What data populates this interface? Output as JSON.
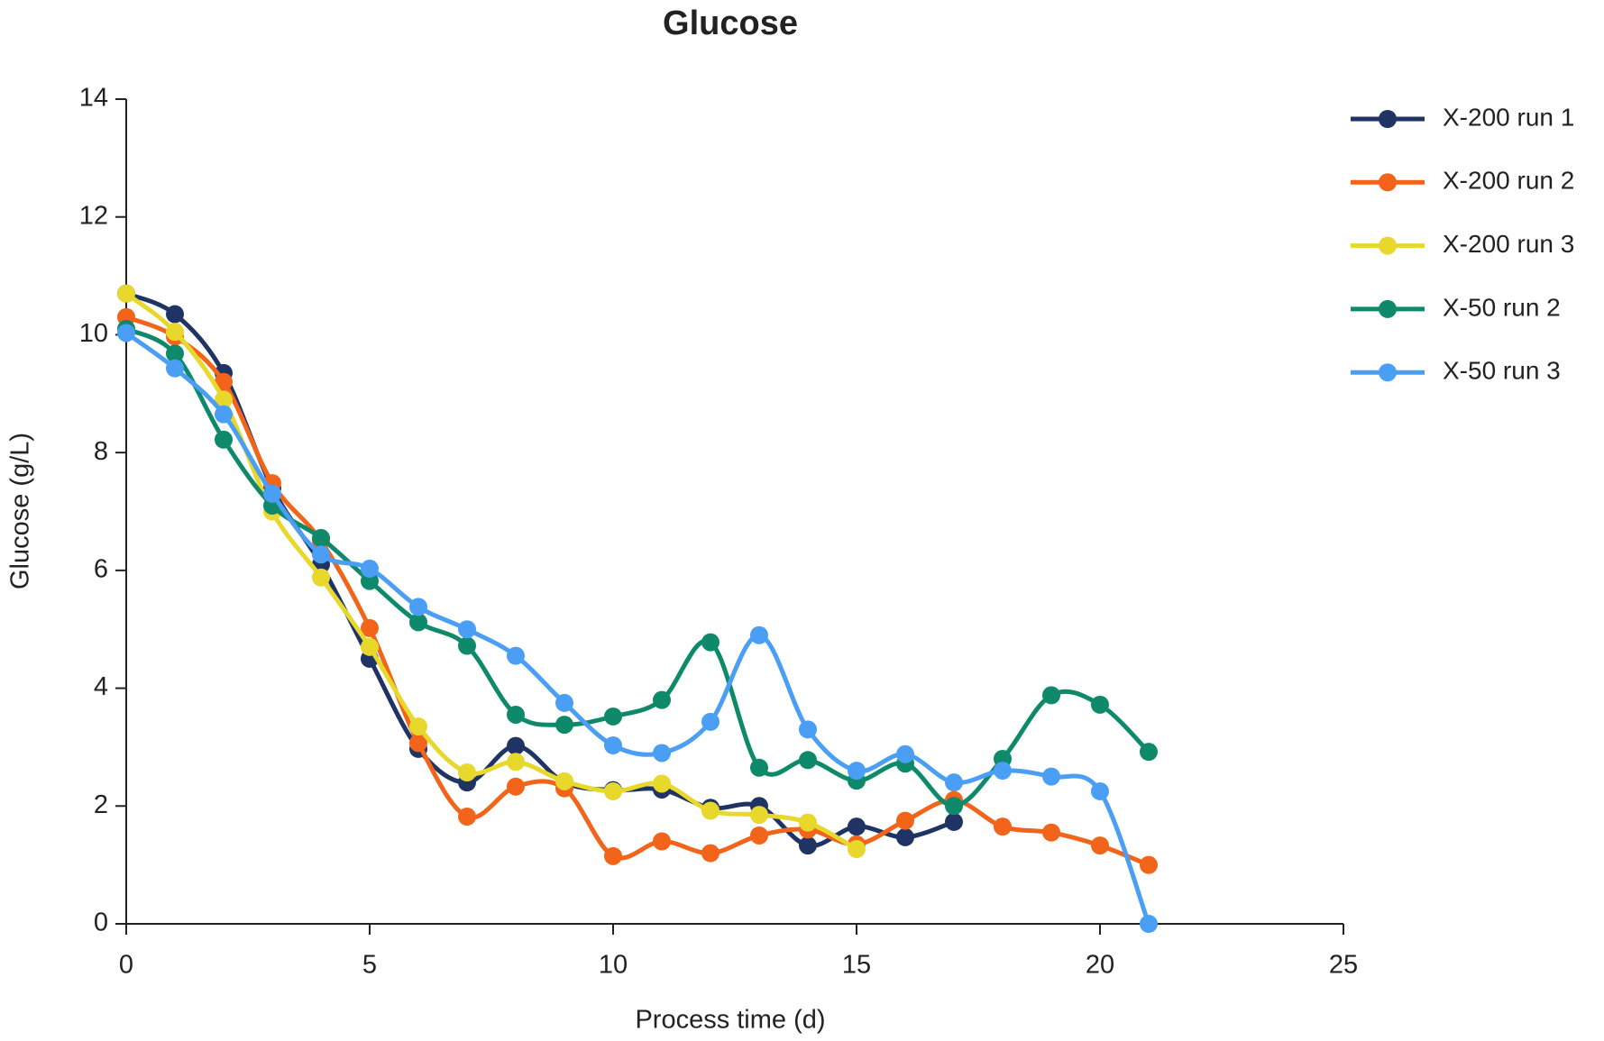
{
  "chart_data": {
    "type": "line",
    "title": "Glucose",
    "x_label": "Process time (d)",
    "y_label": "Glucose (g/L)",
    "xlim": [
      0,
      25
    ],
    "xticks": [
      0,
      5,
      10,
      15,
      20,
      25
    ],
    "ylim": [
      0,
      14
    ],
    "yticks": [
      0,
      2,
      4,
      6,
      8,
      10,
      12,
      14
    ],
    "grid": false,
    "legend": "right",
    "series": [
      {
        "name": "X-200 run 1",
        "color": "#1f3464",
        "x": [
          0,
          1,
          2,
          3,
          4,
          5,
          6,
          7,
          8,
          9,
          10,
          11,
          12,
          13,
          14,
          15,
          16,
          17
        ],
        "values": [
          10.7,
          10.35,
          9.35,
          7.4,
          6.1,
          4.5,
          2.97,
          2.4,
          3.02,
          2.4,
          2.27,
          2.28,
          1.97,
          2.0,
          1.33,
          1.65,
          1.47,
          1.73
        ]
      },
      {
        "name": "X-200 run 2",
        "color": "#f26419",
        "x": [
          0,
          1,
          2,
          3,
          4,
          5,
          6,
          7,
          8,
          9,
          10,
          11,
          12,
          13,
          14,
          15,
          16,
          17,
          18,
          19,
          20,
          21
        ],
        "values": [
          10.3,
          9.97,
          9.2,
          7.48,
          6.5,
          5.02,
          3.07,
          1.82,
          2.33,
          2.3,
          1.15,
          1.4,
          1.2,
          1.5,
          1.6,
          1.35,
          1.75,
          2.1,
          1.65,
          1.55,
          1.33,
          1.0
        ]
      },
      {
        "name": "X-200 run 3",
        "color": "#e8d82c",
        "x": [
          0,
          1,
          2,
          3,
          4,
          5,
          6,
          7,
          8,
          9,
          10,
          11,
          12,
          13,
          14,
          15
        ],
        "values": [
          10.7,
          10.05,
          8.9,
          7.0,
          5.88,
          4.7,
          3.35,
          2.57,
          2.75,
          2.42,
          2.25,
          2.38,
          1.92,
          1.85,
          1.72,
          1.27
        ]
      },
      {
        "name": "X-50 run 2",
        "color": "#0e8a6a",
        "x": [
          0,
          1,
          2,
          3,
          4,
          5,
          6,
          7,
          8,
          9,
          10,
          11,
          12,
          13,
          14,
          15,
          16,
          17,
          18,
          19,
          20,
          21
        ],
        "values": [
          10.1,
          9.68,
          8.22,
          7.1,
          6.55,
          5.82,
          5.12,
          4.72,
          3.55,
          3.38,
          3.52,
          3.8,
          4.78,
          2.65,
          2.78,
          2.43,
          2.72,
          2.0,
          2.8,
          3.88,
          3.72,
          2.92
        ]
      },
      {
        "name": "X-50 run 3",
        "color": "#4a9ff5",
        "x": [
          0,
          1,
          2,
          3,
          4,
          5,
          6,
          7,
          8,
          9,
          10,
          11,
          12,
          13,
          14,
          15,
          16,
          17,
          18,
          19,
          20,
          21
        ],
        "values": [
          10.03,
          9.43,
          8.65,
          7.3,
          6.27,
          6.03,
          5.38,
          5.0,
          4.55,
          3.75,
          3.03,
          2.9,
          3.43,
          4.9,
          3.3,
          2.6,
          2.88,
          2.4,
          2.6,
          2.5,
          2.25,
          0.0
        ]
      }
    ]
  }
}
